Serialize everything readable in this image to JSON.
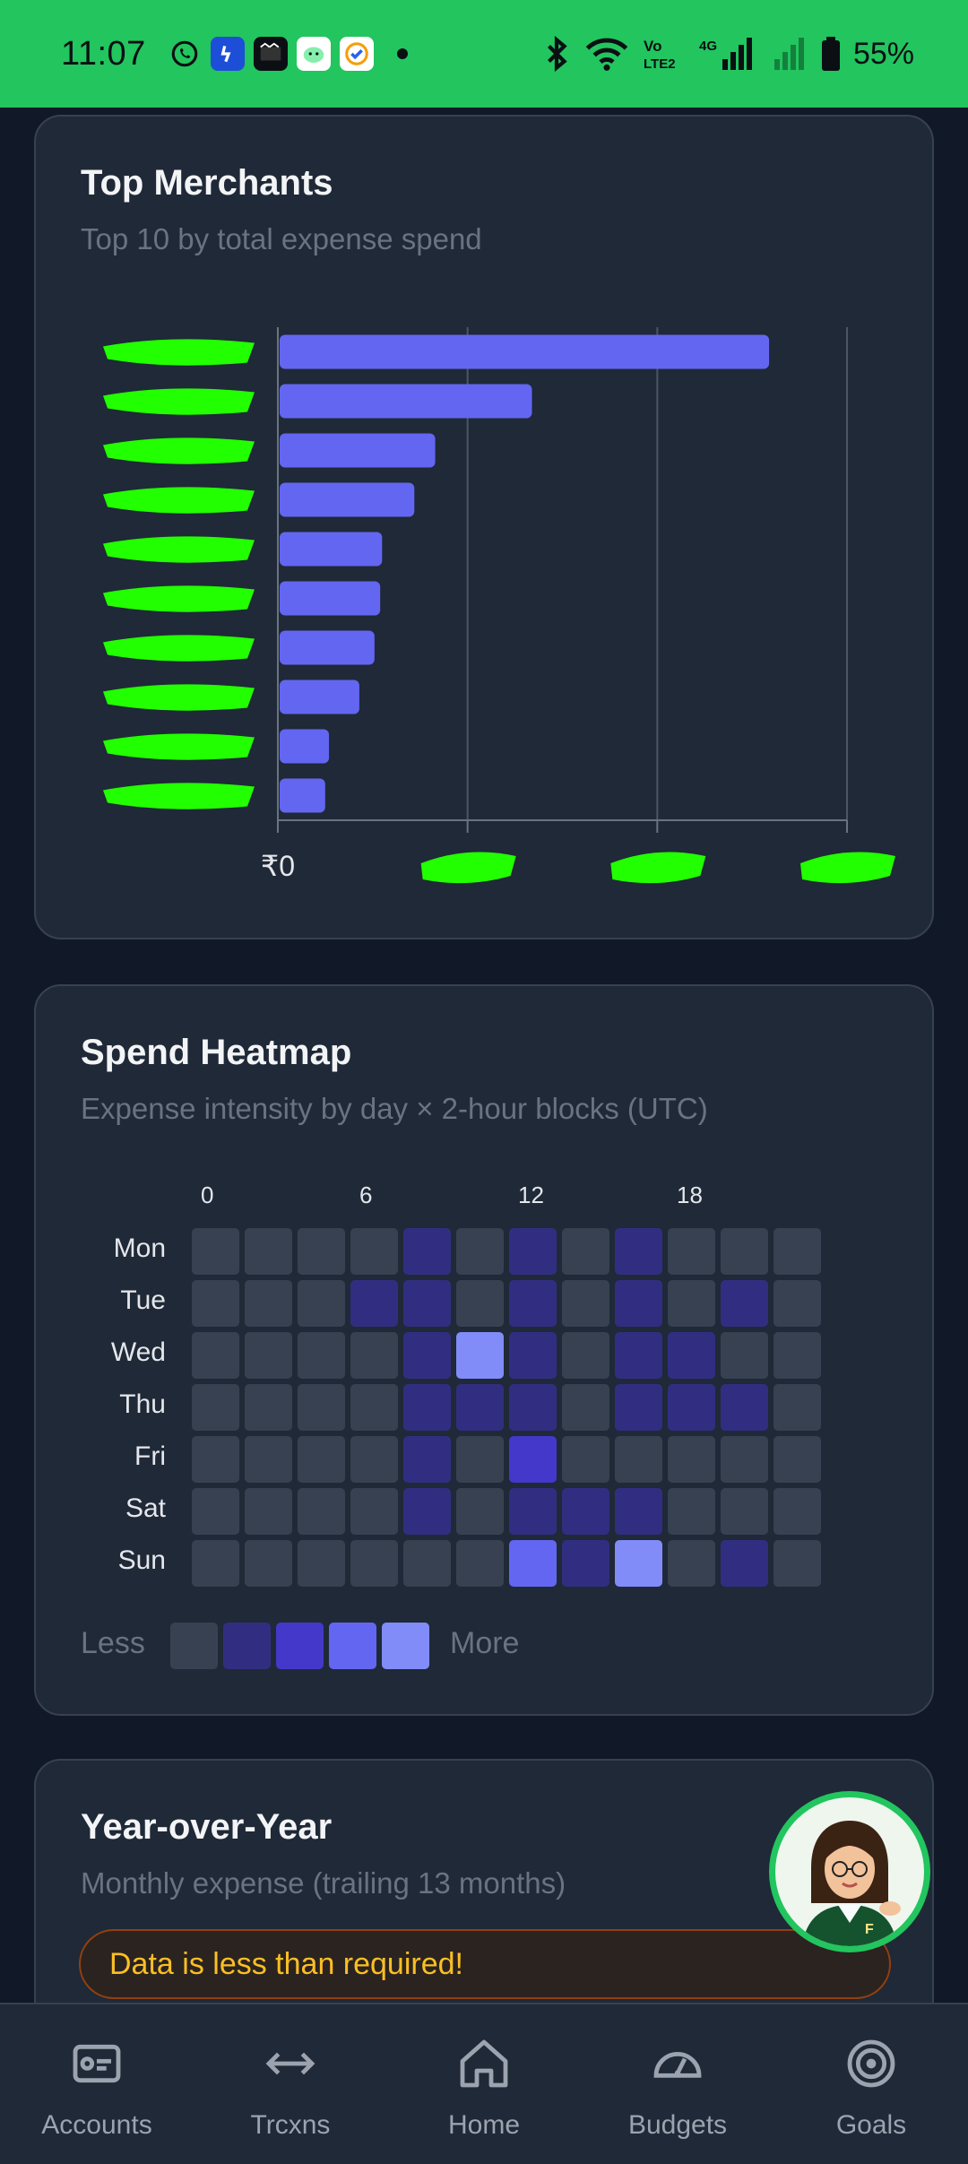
{
  "status_bar": {
    "time": "11:07",
    "battery": "55%",
    "network": "4G"
  },
  "top_merchants": {
    "title": "Top Merchants",
    "subtitle": "Top 10 by total expense spend",
    "chart_data": {
      "type": "bar",
      "orientation": "horizontal",
      "categories": [
        "(redacted)",
        "(redacted)",
        "(redacted)",
        "(redacted)",
        "(redacted)",
        "(redacted)",
        "(redacted)",
        "(redacted)",
        "(redacted)",
        "(redacted)"
      ],
      "values": [
        258,
        133,
        82,
        71,
        54,
        53,
        50,
        42,
        26,
        24
      ],
      "value_scale_note": "relative to axis max of 300 (tick values redacted except first)",
      "x_ticks": [
        "₹0",
        "",
        "",
        ""
      ],
      "xlim": [
        0,
        300
      ],
      "bar_color": "#6366f1",
      "grid": true
    }
  },
  "heatmap": {
    "title": "Spend Heatmap",
    "subtitle": "Expense intensity by day × 2-hour blocks (UTC)",
    "hours": [
      "0",
      "6",
      "12",
      "18"
    ],
    "days": [
      "Mon",
      "Tue",
      "Wed",
      "Thu",
      "Fri",
      "Sat",
      "Sun"
    ],
    "levels_colors": [
      "#374151",
      "#312e81",
      "#4338ca",
      "#6366f1",
      "#818cf8"
    ],
    "chart_data": {
      "type": "heatmap",
      "x": [
        "0",
        "2",
        "4",
        "6",
        "8",
        "10",
        "12",
        "14",
        "16",
        "18",
        "20",
        "22"
      ],
      "y": [
        "Mon",
        "Tue",
        "Wed",
        "Thu",
        "Fri",
        "Sat",
        "Sun"
      ],
      "levels": [
        [
          0,
          0,
          0,
          0,
          1,
          0,
          1,
          0,
          1,
          0,
          0,
          0
        ],
        [
          0,
          0,
          0,
          1,
          1,
          0,
          1,
          0,
          1,
          0,
          1,
          0
        ],
        [
          0,
          0,
          0,
          0,
          1,
          4,
          1,
          0,
          1,
          1,
          0,
          0
        ],
        [
          0,
          0,
          0,
          0,
          1,
          1,
          1,
          0,
          1,
          1,
          1,
          0
        ],
        [
          0,
          0,
          0,
          0,
          1,
          0,
          2,
          0,
          0,
          0,
          0,
          0
        ],
        [
          0,
          0,
          0,
          0,
          1,
          0,
          1,
          1,
          1,
          0,
          0,
          0
        ],
        [
          0,
          0,
          0,
          0,
          0,
          0,
          3,
          1,
          4,
          0,
          1,
          0
        ]
      ]
    },
    "legend_less": "Less",
    "legend_more": "More"
  },
  "yoy": {
    "title": "Year-over-Year",
    "subtitle": "Monthly expense (trailing 13 months)",
    "alert": "Data is less than required!"
  },
  "nav": [
    {
      "label": "Accounts",
      "icon": "accounts-icon"
    },
    {
      "label": "Trcxns",
      "icon": "transactions-icon"
    },
    {
      "label": "Home",
      "icon": "home-icon"
    },
    {
      "label": "Budgets",
      "icon": "budgets-icon"
    },
    {
      "label": "Goals",
      "icon": "goals-icon"
    }
  ]
}
